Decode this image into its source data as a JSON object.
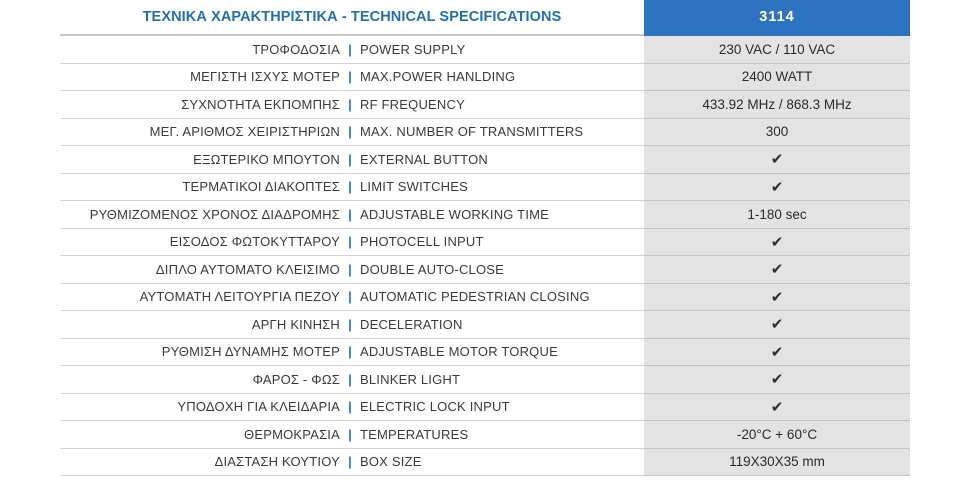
{
  "header": {
    "title": "ΤΕΧΝΙΚΑ ΧΑΡΑΚΤΗΡΙΣΤΙΚΑ - TECHNICAL SPECIFICATIONS",
    "model": "3114"
  },
  "separator": "|",
  "check_icon": "checkmark-icon",
  "rows": [
    {
      "gr": "ΤΡΟΦΟΔΟΣΙΑ",
      "en": "POWER SUPPLY",
      "value": "230 VAC / 110 VAC"
    },
    {
      "gr": "ΜΕΓΙΣΤΗ ΙΣΧΥΣ ΜΟΤΕΡ",
      "en": "MAX.POWER HANLDING",
      "value": "2400 WATT"
    },
    {
      "gr": "ΣΥΧΝΟΤΗΤΑ ΕΚΠΟΜΠΗΣ",
      "en": "RF FREQUENCY",
      "value": "433.92 MHz / 868.3 MHz"
    },
    {
      "gr": "ΜΕΓ. ΑΡΙΘΜΟΣ ΧΕΙΡΙΣΤΗΡΙΩΝ",
      "en": "MAX. NUMBER OF TRANSMITTERS",
      "value": "300"
    },
    {
      "gr": "ΕΞΩΤΕΡΙΚΟ ΜΠΟΥΤΟΝ",
      "en": "EXTERNAL BUTTON",
      "value": "✔"
    },
    {
      "gr": "ΤΕΡΜΑΤΙΚΟΙ ΔΙΑΚΟΠΤΕΣ",
      "en": "LIMIT SWITCHES",
      "value": "✔"
    },
    {
      "gr": "ΡΥΘΜΙΖΟΜΕΝΟΣ ΧΡΟΝΟΣ ΔΙΑΔΡΟΜΗΣ",
      "en": "ADJUSTABLE WORKING TIME",
      "value": "1-180 sec"
    },
    {
      "gr": "ΕΙΣΟΔΟΣ ΦΩΤΟΚΥΤΤΑΡΟΥ",
      "en": "PHOTOCELL INPUT",
      "value": "✔"
    },
    {
      "gr": "ΔΙΠΛΟ ΑΥΤΟΜΑΤΟ ΚΛΕΙΣΙΜΟ",
      "en": "DOUBLE AUTO-CLOSE",
      "value": "✔"
    },
    {
      "gr": "ΑΥΤΟΜΑΤΗ ΛΕΙΤΟΥΡΓΙΑ ΠΕΖΟΥ",
      "en": "AUTOMATIC PEDESTRIAN CLOSING",
      "value": "✔"
    },
    {
      "gr": "ΑΡΓΗ ΚΙΝΗΣΗ",
      "en": "DECELERATION",
      "value": "✔"
    },
    {
      "gr": "ΡΥΘΜΙΣΗ ΔΥΝΑΜΗΣ ΜΟΤΕΡ",
      "en": "ADJUSTABLE MOTOR TORQUE",
      "value": "✔"
    },
    {
      "gr": "ΦΑΡΟΣ - ΦΩΣ",
      "en": "BLINKER LIGHT",
      "value": "✔"
    },
    {
      "gr": "ΥΠΟΔΟΧΗ ΓΙΑ ΚΛΕΙΔΑΡΙΑ",
      "en": "ELECTRIC LOCK INPUT",
      "value": "✔"
    },
    {
      "gr": "ΘΕΡΜΟΚΡΑΣΙΑ",
      "en": "TEMPERATURES",
      "value": "-20°C + 60°C"
    },
    {
      "gr": "ΔΙΑΣΤΑΣΗ ΚΟΥΤΙΟΥ",
      "en": "BOX SIZE",
      "value": "119X30X35 mm"
    }
  ]
}
